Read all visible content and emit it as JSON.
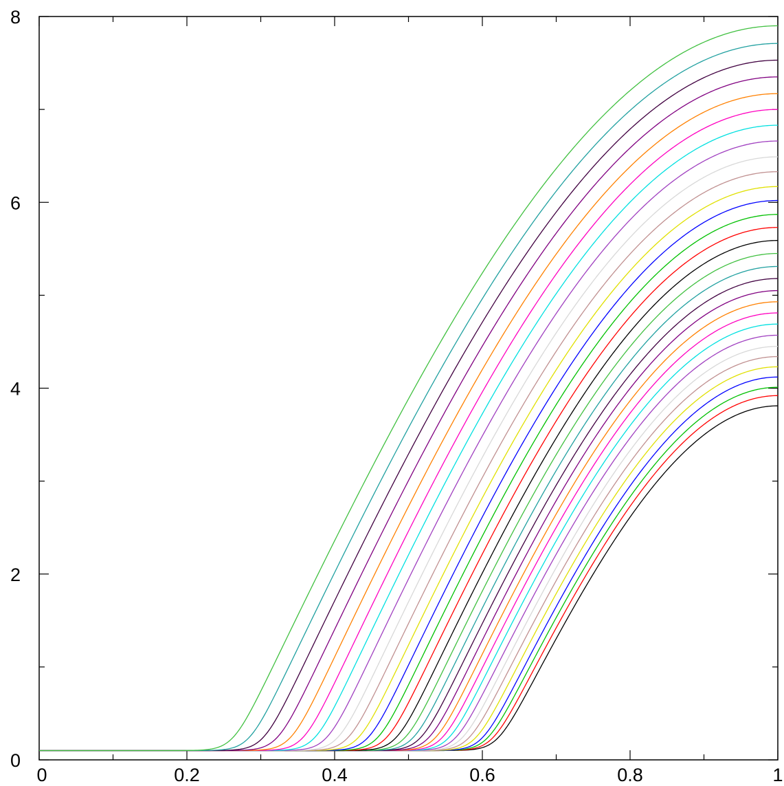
{
  "chart_data": {
    "type": "line",
    "title": "",
    "xlabel": "",
    "ylabel": "",
    "xlim": [
      0,
      1
    ],
    "ylim": [
      0,
      8
    ],
    "grid": false,
    "legend": "none",
    "x_ticks": [
      "0",
      "0.2",
      "0.4",
      "0.6",
      "0.8",
      "1"
    ],
    "x_tick_values": [
      0,
      0.2,
      0.4,
      0.6,
      0.8,
      1
    ],
    "y_ticks": [
      "0",
      "2",
      "4",
      "6",
      "8"
    ],
    "y_tick_values": [
      0,
      2,
      4,
      6,
      8
    ],
    "baseline": 0.1,
    "series": [
      {
        "color": "#000000",
        "onset": 0.62,
        "end_value": 3.81
      },
      {
        "color": "#ff0000",
        "onset": 0.613,
        "end_value": 3.92
      },
      {
        "color": "#00c000",
        "onset": 0.606,
        "end_value": 4.01
      },
      {
        "color": "#0000ff",
        "onset": 0.599,
        "end_value": 4.12
      },
      {
        "color": "#e0e000",
        "onset": 0.59,
        "end_value": 4.23
      },
      {
        "color": "#c09090",
        "onset": 0.581,
        "end_value": 4.34
      },
      {
        "color": "#d8d8d8",
        "onset": 0.572,
        "end_value": 4.45
      },
      {
        "color": "#a040c0",
        "onset": 0.563,
        "end_value": 4.57
      },
      {
        "color": "#00e0e0",
        "onset": 0.554,
        "end_value": 4.69
      },
      {
        "color": "#ff00c0",
        "onset": 0.545,
        "end_value": 4.81
      },
      {
        "color": "#ff8000",
        "onset": 0.536,
        "end_value": 4.93
      },
      {
        "color": "#800080",
        "onset": 0.527,
        "end_value": 5.05
      },
      {
        "color": "#400040",
        "onset": 0.516,
        "end_value": 5.18
      },
      {
        "color": "#20a0a0",
        "onset": 0.506,
        "end_value": 5.31
      },
      {
        "color": "#40c040",
        "onset": 0.495,
        "end_value": 5.45
      },
      {
        "color": "#000000",
        "onset": 0.483,
        "end_value": 5.59
      },
      {
        "color": "#ff0000",
        "onset": 0.47,
        "end_value": 5.73
      },
      {
        "color": "#00c000",
        "onset": 0.458,
        "end_value": 5.87
      },
      {
        "color": "#0000ff",
        "onset": 0.445,
        "end_value": 6.02
      },
      {
        "color": "#e0e000",
        "onset": 0.432,
        "end_value": 6.17
      },
      {
        "color": "#c09090",
        "onset": 0.418,
        "end_value": 6.33
      },
      {
        "color": "#d8d8d8",
        "onset": 0.404,
        "end_value": 6.49
      },
      {
        "color": "#a040c0",
        "onset": 0.389,
        "end_value": 6.66
      },
      {
        "color": "#00e0e0",
        "onset": 0.373,
        "end_value": 6.83
      },
      {
        "color": "#ff00c0",
        "onset": 0.357,
        "end_value": 7.0
      },
      {
        "color": "#ff8000",
        "onset": 0.34,
        "end_value": 7.17
      },
      {
        "color": "#800080",
        "onset": 0.322,
        "end_value": 7.35
      },
      {
        "color": "#400040",
        "onset": 0.303,
        "end_value": 7.53
      },
      {
        "color": "#20a0a0",
        "onset": 0.284,
        "end_value": 7.71
      },
      {
        "color": "#40c040",
        "onset": 0.262,
        "end_value": 7.9
      }
    ]
  }
}
